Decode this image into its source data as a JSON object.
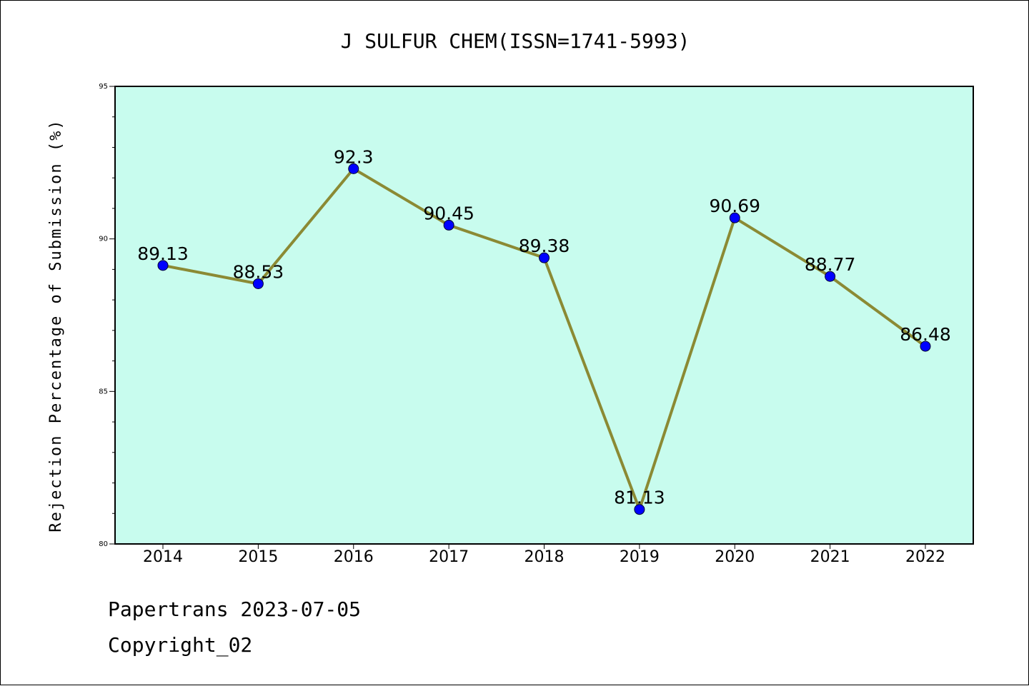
{
  "chart_data": {
    "type": "line",
    "title": "J SULFUR CHEM(ISSN=1741-5993)",
    "ylabel": "Rejection Percentage of Submission (%)",
    "xlabel": "",
    "categories": [
      "2014",
      "2015",
      "2016",
      "2017",
      "2018",
      "2019",
      "2020",
      "2021",
      "2022"
    ],
    "values": [
      89.13,
      88.53,
      92.3,
      90.45,
      89.38,
      81.13,
      90.69,
      88.77,
      86.48
    ],
    "data_labels": [
      "89.13",
      "88.53",
      "92.3",
      "90.45",
      "89.38",
      "81.13",
      "90.69",
      "88.77",
      "86.48"
    ],
    "ylim": [
      80,
      95
    ],
    "yticks": [
      "80",
      "85",
      "90",
      "95"
    ],
    "grid": false,
    "colors": {
      "plot_bg": "#c8fcee",
      "line": "#8b8a34",
      "marker": "#0000ff"
    }
  },
  "footer": {
    "line1": "Papertrans 2023-07-05",
    "line2": "Copyright_02"
  }
}
